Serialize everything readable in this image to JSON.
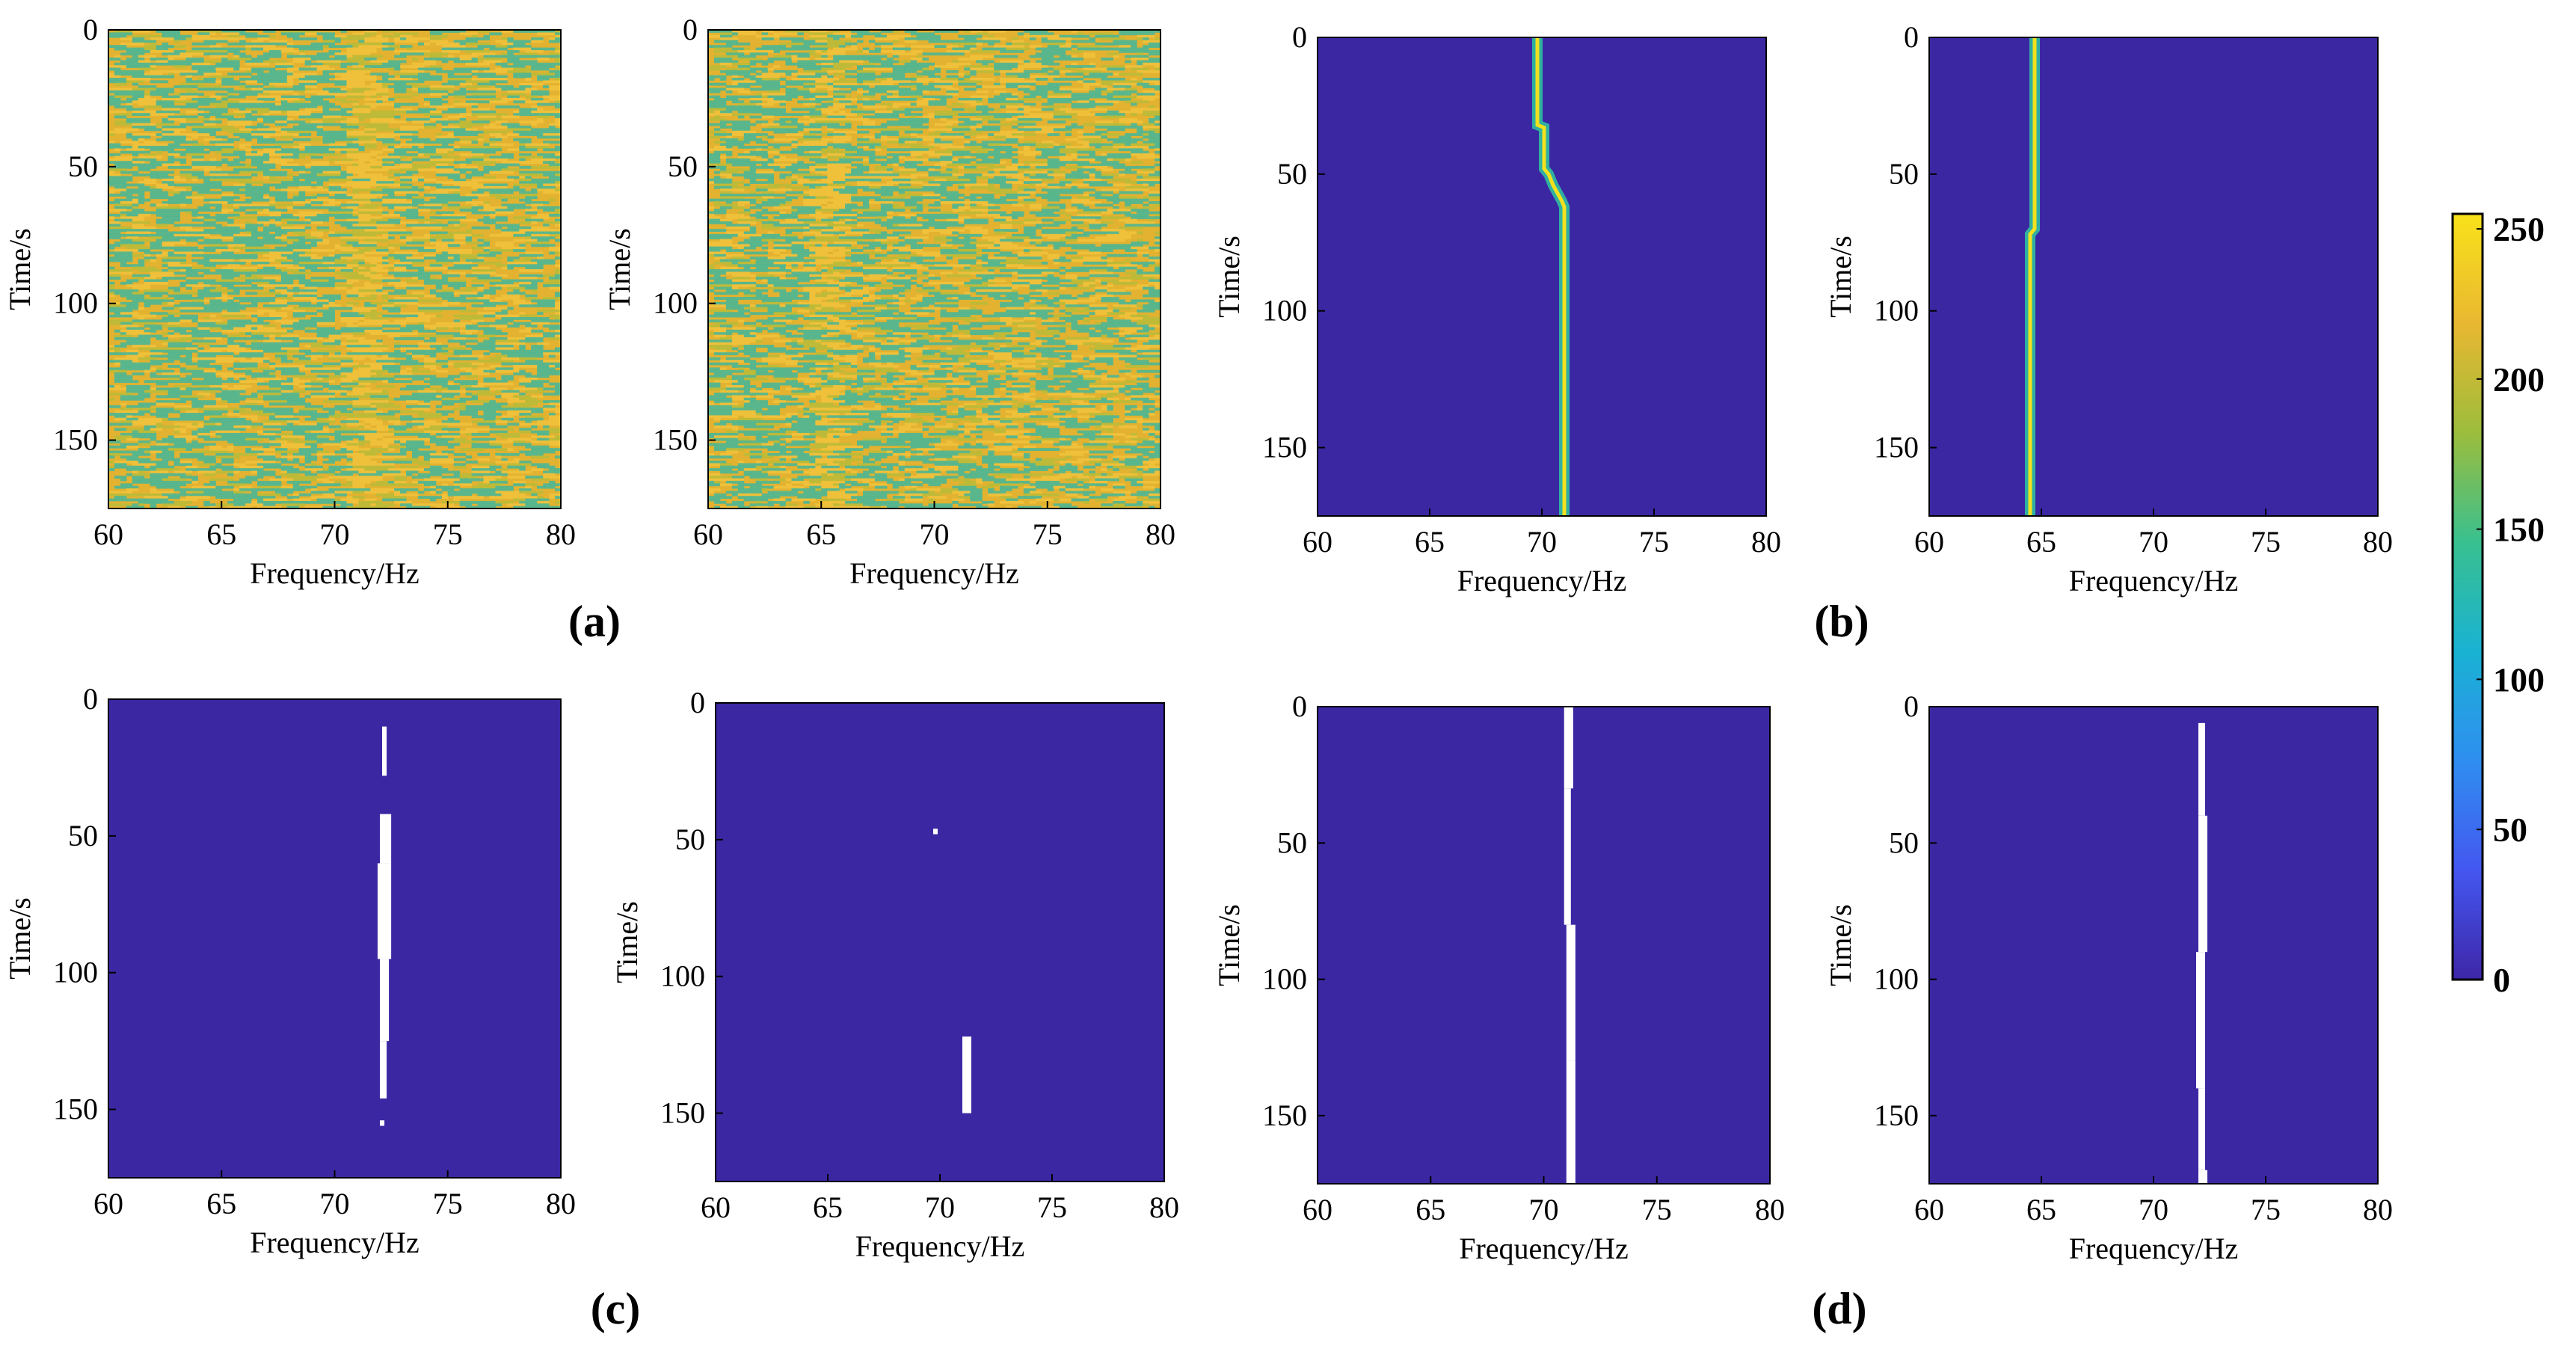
{
  "colors": {
    "background_blue": "#3c27a3",
    "track_white": "#ffffff",
    "noise_base": "#e2b230",
    "noise_speckle": "#44b69a",
    "noise_bright": "#f1c23c",
    "colorbar_stops": [
      "#3e26a8",
      "#4457f0",
      "#2f8ef0",
      "#19b2d3",
      "#39c08f",
      "#9cbd3c",
      "#e9b731",
      "#f8e21a"
    ]
  },
  "panel_labels": [
    "(a)",
    "(b)",
    "(c)",
    "(d)"
  ],
  "colorbar": {
    "range": [
      0,
      255
    ],
    "ticks": [
      "0",
      "50",
      "100",
      "150",
      "200",
      "250"
    ],
    "tick_values": [
      0,
      50,
      100,
      150,
      200,
      250
    ]
  },
  "chart_data": [
    {
      "id": "a1",
      "type": "heatmap",
      "style": "noise",
      "xlabel": "Frequency/Hz",
      "ylabel": "Time/s",
      "xlim": [
        60,
        80
      ],
      "ylim": [
        0,
        175
      ],
      "y_reversed": true,
      "xticks": [
        "60",
        "65",
        "70",
        "75",
        "80"
      ],
      "yticks": [
        "0",
        "50",
        "100",
        "150"
      ],
      "track_hint_hz": 71
    },
    {
      "id": "a2",
      "type": "heatmap",
      "style": "noise",
      "xlabel": "Frequency/Hz",
      "ylabel": "Time/s",
      "xlim": [
        60,
        80
      ],
      "ylim": [
        0,
        175
      ],
      "y_reversed": true,
      "xticks": [
        "60",
        "65",
        "70",
        "75",
        "80"
      ],
      "yticks": [
        "0",
        "50",
        "100",
        "150"
      ],
      "track_hint_hz": 65
    },
    {
      "id": "b1",
      "type": "heatmap",
      "style": "line",
      "xlabel": "Frequency/Hz",
      "ylabel": "Time/s",
      "xlim": [
        60,
        80
      ],
      "ylim": [
        0,
        175
      ],
      "y_reversed": true,
      "xticks": [
        "60",
        "65",
        "70",
        "75",
        "80"
      ],
      "yticks": [
        "0",
        "50",
        "100",
        "150"
      ],
      "track": [
        [
          0,
          69.8
        ],
        [
          32,
          69.8
        ],
        [
          33,
          70.1
        ],
        [
          48,
          70.1
        ],
        [
          50,
          70.3
        ],
        [
          54,
          70.5
        ],
        [
          57,
          70.7
        ],
        [
          60,
          70.9
        ],
        [
          62,
          71.0
        ],
        [
          175,
          71.0
        ]
      ]
    },
    {
      "id": "b2",
      "type": "heatmap",
      "style": "line",
      "xlabel": "Frequency/Hz",
      "ylabel": "Time/s",
      "xlim": [
        60,
        80
      ],
      "ylim": [
        0,
        175
      ],
      "y_reversed": true,
      "xticks": [
        "60",
        "65",
        "70",
        "75",
        "80"
      ],
      "yticks": [
        "0",
        "50",
        "100",
        "150"
      ],
      "track": [
        [
          0,
          64.7
        ],
        [
          70,
          64.7
        ],
        [
          72,
          64.5
        ],
        [
          175,
          64.5
        ]
      ]
    },
    {
      "id": "c1",
      "type": "heatmap",
      "style": "binary",
      "xlabel": "Frequency/Hz",
      "ylabel": "Time/s",
      "xlim": [
        60,
        80
      ],
      "ylim": [
        0,
        175
      ],
      "y_reversed": true,
      "xticks": [
        "60",
        "65",
        "70",
        "75",
        "80"
      ],
      "yticks": [
        "0",
        "50",
        "100",
        "150"
      ],
      "segments": [
        [
          10,
          28,
          72.1,
          72.3
        ],
        [
          42,
          60,
          72.0,
          72.5
        ],
        [
          60,
          95,
          71.9,
          72.5
        ],
        [
          95,
          125,
          72.0,
          72.4
        ],
        [
          125,
          146,
          72.0,
          72.3
        ],
        [
          154,
          156,
          72.0,
          72.2
        ]
      ]
    },
    {
      "id": "c2",
      "type": "heatmap",
      "style": "binary",
      "xlabel": "Frequency/Hz",
      "ylabel": "Time/s",
      "xlim": [
        60,
        80
      ],
      "ylim": [
        0,
        175
      ],
      "y_reversed": true,
      "xticks": [
        "60",
        "65",
        "70",
        "75",
        "80"
      ],
      "yticks": [
        "0",
        "50",
        "100",
        "150"
      ],
      "segments": [
        [
          46,
          48,
          69.7,
          69.9
        ],
        [
          122,
          150,
          71.0,
          71.4
        ]
      ]
    },
    {
      "id": "d1",
      "type": "heatmap",
      "style": "binary",
      "xlabel": "Frequency/Hz",
      "ylabel": "Time/s",
      "xlim": [
        60,
        80
      ],
      "ylim": [
        0,
        175
      ],
      "y_reversed": true,
      "xticks": [
        "60",
        "65",
        "70",
        "75",
        "80"
      ],
      "yticks": [
        "0",
        "50",
        "100",
        "150"
      ],
      "segments": [
        [
          0,
          30,
          70.9,
          71.3
        ],
        [
          30,
          80,
          70.9,
          71.2
        ],
        [
          80,
          130,
          71.0,
          71.4
        ],
        [
          130,
          175,
          71.0,
          71.4
        ]
      ]
    },
    {
      "id": "d2",
      "type": "heatmap",
      "style": "binary",
      "xlabel": "Frequency/Hz",
      "ylabel": "Time/s",
      "xlim": [
        60,
        80
      ],
      "ylim": [
        0,
        175
      ],
      "y_reversed": true,
      "xticks": [
        "60",
        "65",
        "70",
        "75",
        "80"
      ],
      "yticks": [
        "0",
        "50",
        "100",
        "150"
      ],
      "segments": [
        [
          6,
          40,
          72.0,
          72.3
        ],
        [
          40,
          90,
          72.0,
          72.4
        ],
        [
          90,
          140,
          71.9,
          72.3
        ],
        [
          140,
          170,
          72.0,
          72.3
        ],
        [
          170,
          175,
          72.0,
          72.4
        ]
      ]
    }
  ]
}
